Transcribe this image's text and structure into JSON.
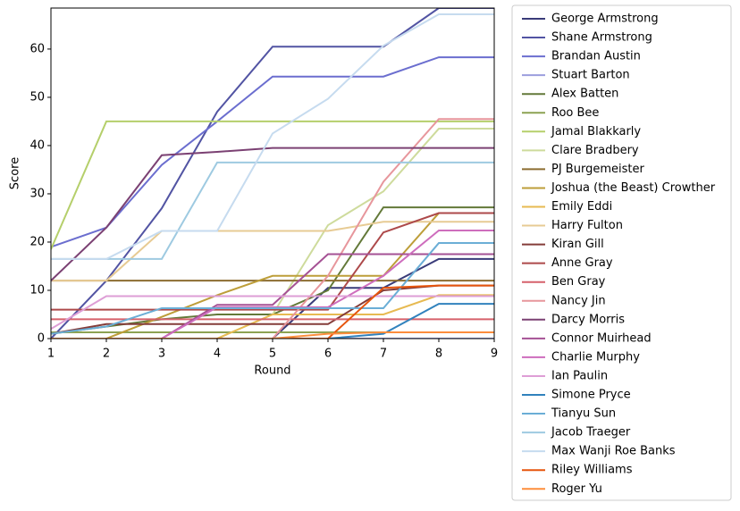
{
  "chart_data": {
    "type": "line",
    "x_label": "Round",
    "y_label": "Score",
    "x": [
      1,
      2,
      3,
      4,
      5,
      6,
      7,
      8,
      9
    ],
    "xlim": [
      1,
      9
    ],
    "xticks": [
      1,
      2,
      3,
      4,
      5,
      6,
      7,
      8,
      9
    ],
    "ylim": [
      0,
      68.5
    ],
    "yticks": [
      0,
      10,
      20,
      30,
      40,
      50,
      60
    ],
    "grid": false,
    "legend": "outside right",
    "series": [
      {
        "name": "George Armstrong",
        "color": "#393b79",
        "values": [
          0,
          0,
          0,
          0,
          0,
          10.5,
          10.5,
          16.5,
          16.5
        ]
      },
      {
        "name": "Shane Armstrong",
        "color": "#5254a3",
        "values": [
          0,
          12,
          27,
          47,
          60.5,
          60.5,
          60.5,
          68.5,
          68.5
        ]
      },
      {
        "name": "Brandan Austin",
        "color": "#6b6ecf",
        "values": [
          19,
          23,
          36,
          45,
          54.3,
          54.3,
          54.3,
          58.3,
          58.3
        ]
      },
      {
        "name": "Stuart Barton",
        "color": "#9c9ede",
        "values": [
          0,
          0,
          0,
          0,
          0,
          0,
          0,
          0,
          0
        ]
      },
      {
        "name": "Alex Batten",
        "color": "#637939",
        "values": [
          1,
          2.5,
          4,
          5,
          5,
          10,
          27.2,
          27.2,
          27.2
        ]
      },
      {
        "name": "Roo Bee",
        "color": "#8ca252",
        "values": [
          1.3,
          1.3,
          1.3,
          1.3,
          1.3,
          1.3,
          1.3,
          1.3,
          1.3
        ]
      },
      {
        "name": "Jamal Blakkarly",
        "color": "#b5cf6b",
        "values": [
          18.5,
          45,
          45,
          45,
          45,
          45,
          45,
          45,
          45
        ]
      },
      {
        "name": "Clare Bradbery",
        "color": "#cedb9c",
        "values": [
          0,
          0,
          0,
          0,
          5,
          23.5,
          30.5,
          43.5,
          43.5
        ]
      },
      {
        "name": "PJ Burgemeister",
        "color": "#8c6d31",
        "values": [
          12,
          12,
          12,
          12,
          12,
          12,
          12,
          12,
          12
        ]
      },
      {
        "name": "Joshua (the Beast) Crowther",
        "color": "#bd9e39",
        "values": [
          0,
          0,
          4.5,
          9,
          13,
          13,
          13,
          26,
          26
        ]
      },
      {
        "name": "Emily Eddi",
        "color": "#e7ba52",
        "values": [
          0,
          0,
          0,
          0,
          5,
          5,
          5,
          9,
          9
        ]
      },
      {
        "name": "Harry Fulton",
        "color": "#e7cb94",
        "values": [
          12,
          12,
          22.3,
          22.3,
          22.3,
          22.3,
          24.2,
          24.2,
          24.2
        ]
      },
      {
        "name": "Kiran Gill",
        "color": "#843c39",
        "values": [
          1,
          3,
          3,
          3,
          3,
          3,
          10,
          11,
          11
        ]
      },
      {
        "name": "Anne Gray",
        "color": "#ad494a",
        "values": [
          6,
          6,
          6,
          6,
          6,
          6,
          22,
          26,
          26
        ]
      },
      {
        "name": "Ben Gray",
        "color": "#d6616b",
        "values": [
          4,
          4,
          4,
          4,
          4,
          4,
          4,
          4,
          4
        ]
      },
      {
        "name": "Nancy Jin",
        "color": "#e7969c",
        "values": [
          0,
          0,
          0,
          0,
          0,
          13,
          32.5,
          45.5,
          45.5
        ]
      },
      {
        "name": "Darcy Morris",
        "color": "#7b4173",
        "values": [
          12,
          23,
          38,
          38.7,
          39.5,
          39.5,
          39.5,
          39.5,
          39.5
        ]
      },
      {
        "name": "Connor Muirhead",
        "color": "#a55194",
        "values": [
          0,
          0,
          0,
          7,
          7,
          17.5,
          17.5,
          17.5,
          17.5
        ]
      },
      {
        "name": "Charlie Murphy",
        "color": "#ce6dbd",
        "values": [
          0,
          0,
          0,
          6.5,
          6.5,
          6.5,
          13,
          22.4,
          22.4
        ]
      },
      {
        "name": "Ian Paulin",
        "color": "#de9ed6",
        "values": [
          2,
          8.8,
          8.8,
          8.8,
          8.8,
          8.8,
          8.8,
          8.8,
          8.8
        ]
      },
      {
        "name": "Simone Pryce",
        "color": "#3182bd",
        "values": [
          0,
          0,
          0,
          0,
          0,
          0,
          1,
          7.2,
          7.2
        ]
      },
      {
        "name": "Tianyu Sun",
        "color": "#6baed6",
        "values": [
          1,
          2.5,
          6.3,
          6.3,
          6.3,
          6.3,
          6.3,
          19.8,
          19.8
        ]
      },
      {
        "name": "Jacob Traeger",
        "color": "#9ecae1",
        "values": [
          16.5,
          16.5,
          16.5,
          36.5,
          36.5,
          36.5,
          36.5,
          36.5,
          36.5
        ]
      },
      {
        "name": "Max Wanji Roe Banks",
        "color": "#c6dbef",
        "values": [
          16.5,
          16.5,
          22.3,
          22.3,
          42.5,
          49.7,
          60.7,
          67.2,
          67.2
        ]
      },
      {
        "name": "Riley Williams",
        "color": "#e6550d",
        "values": [
          0,
          0,
          0,
          0,
          0,
          0,
          10.5,
          11,
          11
        ]
      },
      {
        "name": "Roger Yu",
        "color": "#fd8d3c",
        "values": [
          0,
          0,
          0,
          0,
          0,
          1,
          1.3,
          1.3,
          1.3
        ]
      }
    ]
  }
}
